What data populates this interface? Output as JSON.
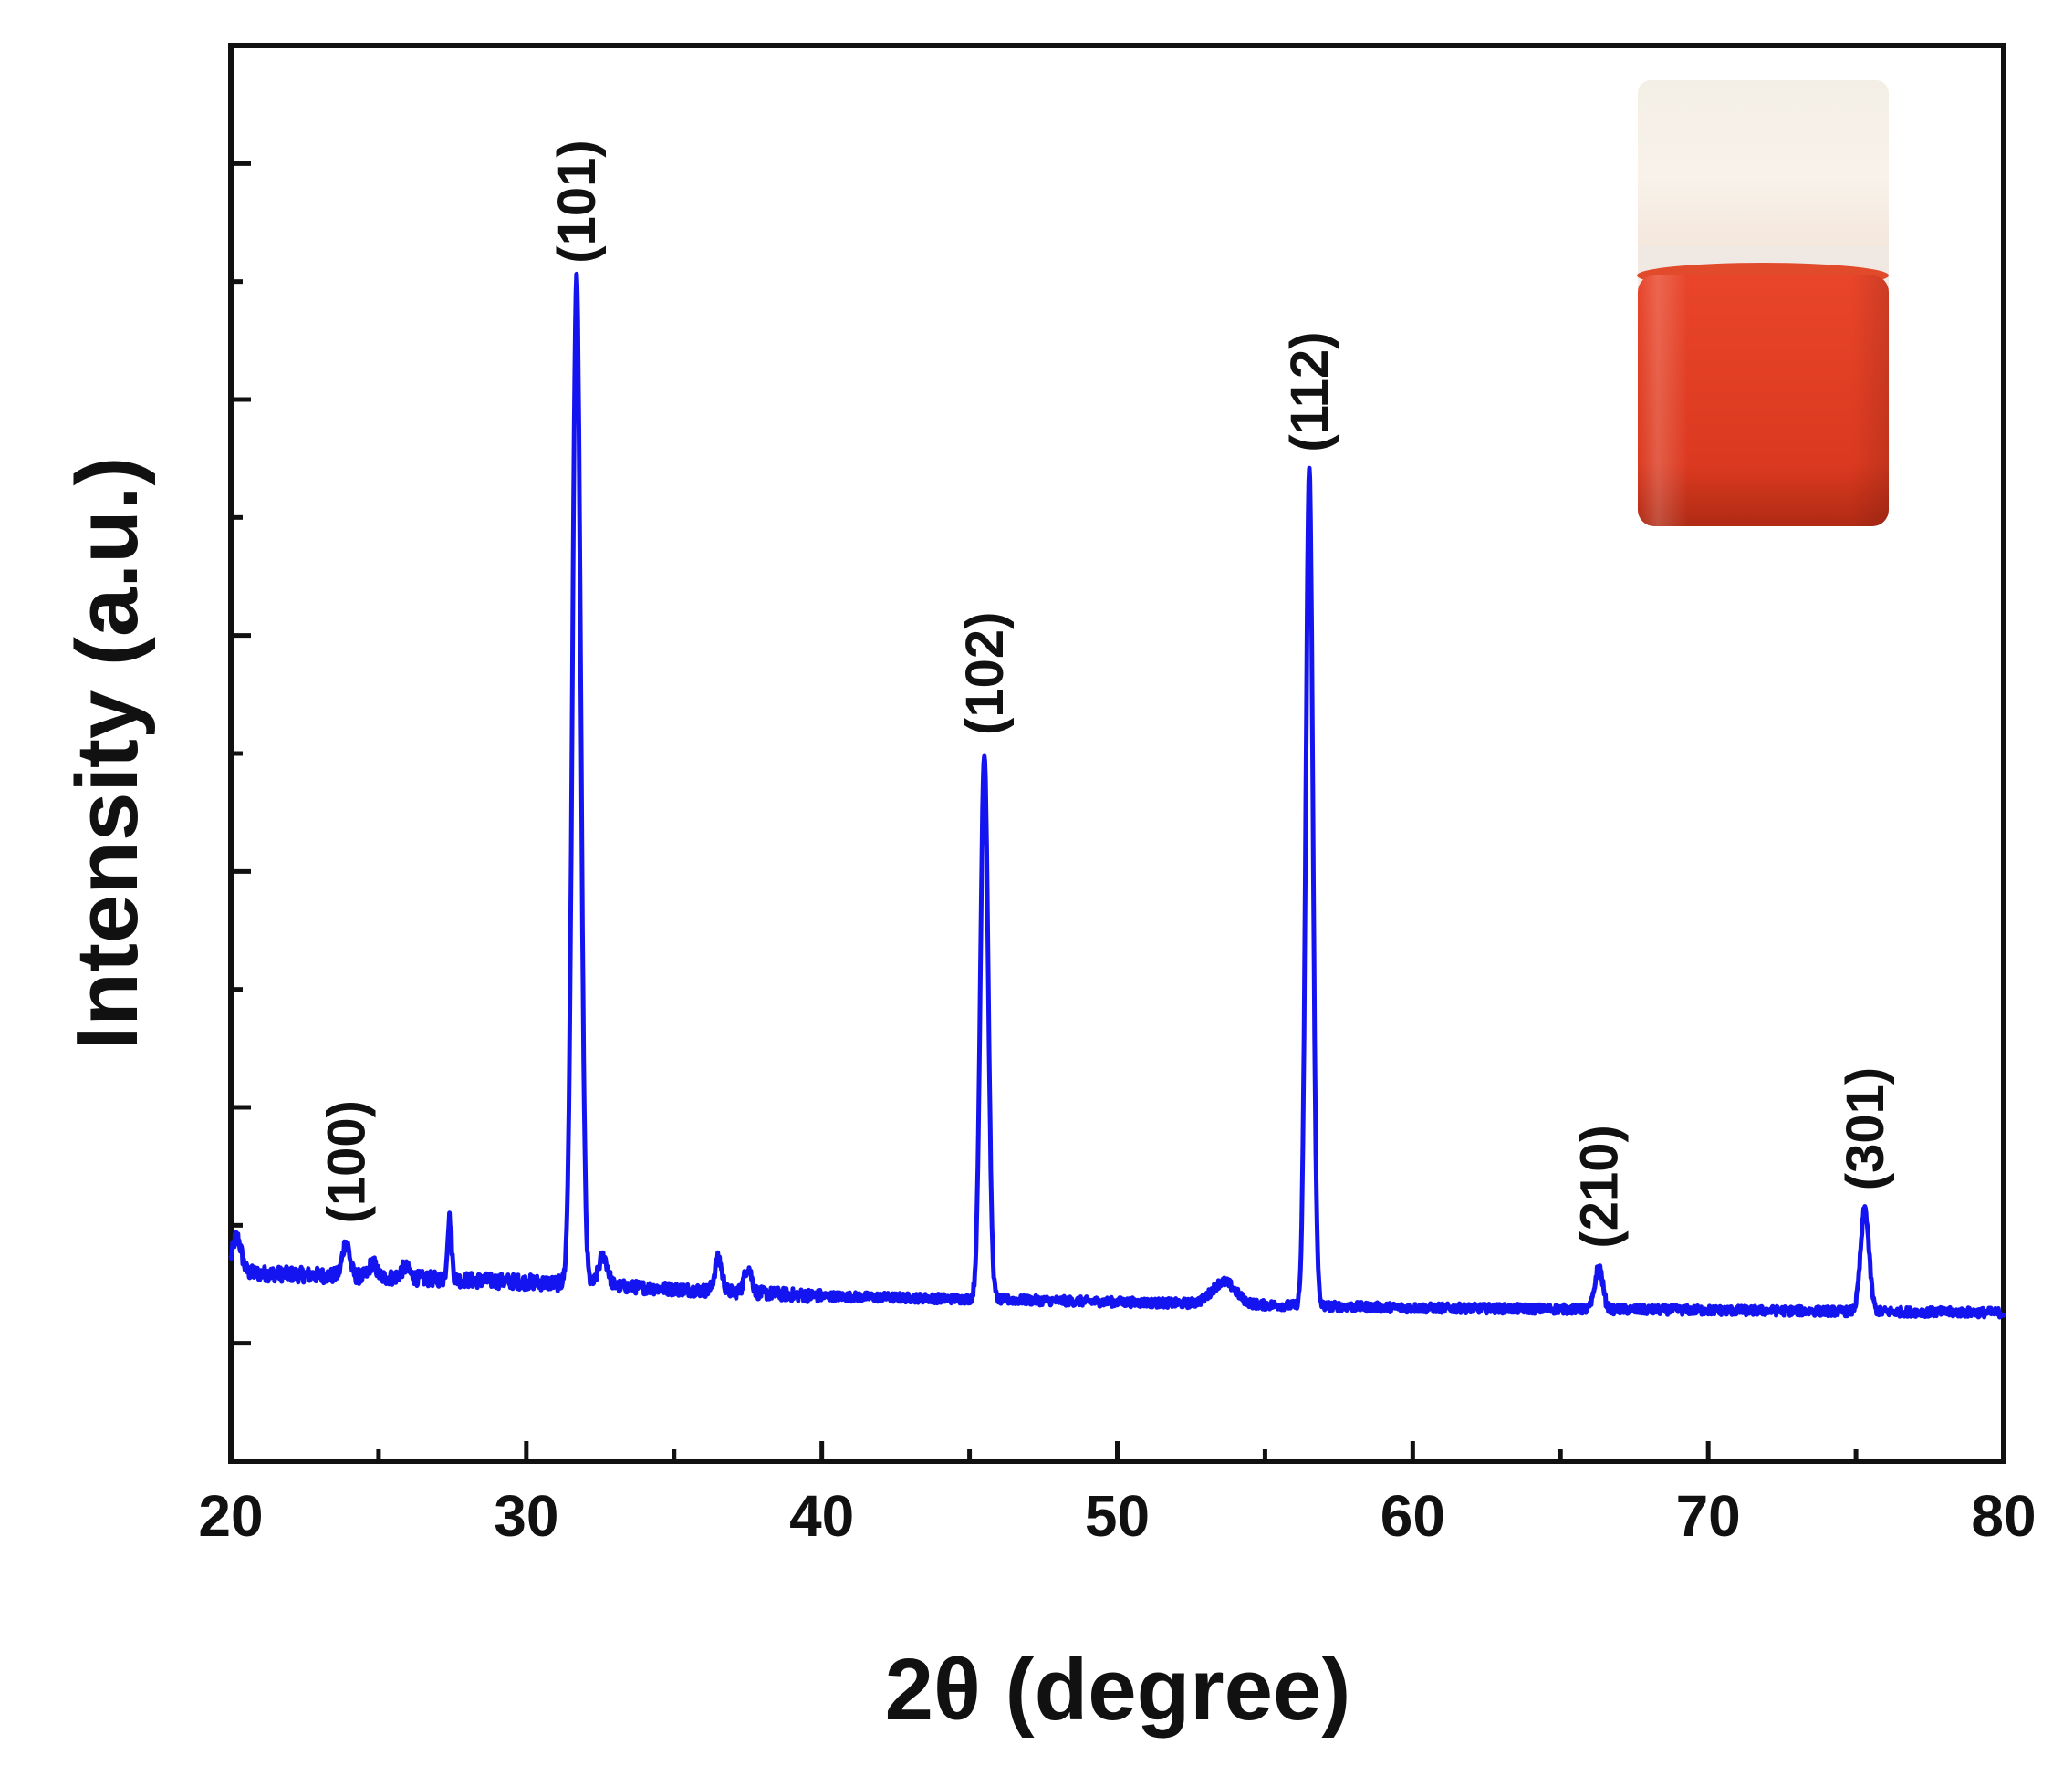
{
  "chart_data": {
    "type": "line",
    "title": "",
    "xlabel": "2θ (degree)",
    "ylabel": "Intensity (a.u.)",
    "xlim": [
      20,
      80
    ],
    "ylim": [
      -10,
      110
    ],
    "x_ticks": [
      20,
      30,
      40,
      50,
      60,
      70,
      80
    ],
    "y_tick_labels_shown": false,
    "grid": false,
    "legend": "none",
    "series": [
      {
        "color": "#1414f0",
        "baseline": [
          {
            "x": 20,
            "y": 6.0
          },
          {
            "x": 30,
            "y": 5.2
          },
          {
            "x": 40,
            "y": 4.0
          },
          {
            "x": 50,
            "y": 3.5
          },
          {
            "x": 60,
            "y": 3.0
          },
          {
            "x": 70,
            "y": 2.8
          },
          {
            "x": 80,
            "y": 2.6
          }
        ],
        "peaks": [
          {
            "x": 20.2,
            "y": 9.0,
            "label": "",
            "width": 0.15
          },
          {
            "x": 23.9,
            "y": 8.6,
            "label": "(100)",
            "width": 0.12
          },
          {
            "x": 24.8,
            "y": 6.8,
            "label": "",
            "width": 0.12
          },
          {
            "x": 25.9,
            "y": 6.4,
            "label": "",
            "width": 0.15
          },
          {
            "x": 27.4,
            "y": 10.6,
            "label": "",
            "width": 0.07
          },
          {
            "x": 31.7,
            "y": 90.0,
            "label": "(101)",
            "width": 0.14
          },
          {
            "x": 32.6,
            "y": 7.4,
            "label": "",
            "width": 0.15
          },
          {
            "x": 36.5,
            "y": 7.2,
            "label": "",
            "width": 0.12
          },
          {
            "x": 37.5,
            "y": 6.5,
            "label": "",
            "width": 0.12
          },
          {
            "x": 45.5,
            "y": 50.0,
            "label": "(102)",
            "width": 0.13
          },
          {
            "x": 53.6,
            "y": 5.2,
            "label": "",
            "width": 0.4
          },
          {
            "x": 56.5,
            "y": 74.0,
            "label": "(112)",
            "width": 0.12
          },
          {
            "x": 66.3,
            "y": 6.5,
            "label": "(210)",
            "width": 0.13
          },
          {
            "x": 75.3,
            "y": 11.4,
            "label": "(301)",
            "width": 0.14
          }
        ]
      }
    ],
    "inset": {
      "type": "photo",
      "subject": "vial of red-orange dispersion"
    }
  }
}
